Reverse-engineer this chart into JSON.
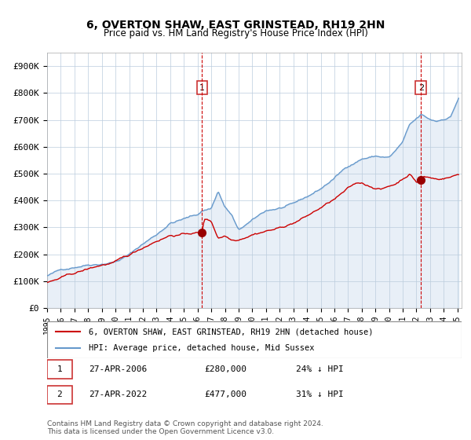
{
  "title": "6, OVERTON SHAW, EAST GRINSTEAD, RH19 2HN",
  "subtitle": "Price paid vs. HM Land Registry's House Price Index (HPI)",
  "ylabel_ticks": [
    "£0",
    "£100K",
    "£200K",
    "£300K",
    "£400K",
    "£500K",
    "£600K",
    "£700K",
    "£800K",
    "£900K"
  ],
  "ytick_values": [
    0,
    100000,
    200000,
    300000,
    400000,
    500000,
    600000,
    700000,
    800000,
    900000
  ],
  "ylim": [
    0,
    950000
  ],
  "legend_line1": "6, OVERTON SHAW, EAST GRINSTEAD, RH19 2HN (detached house)",
  "legend_line2": "HPI: Average price, detached house, Mid Sussex",
  "transaction1_label": "1",
  "transaction1_date": "27-APR-2006",
  "transaction1_price": "£280,000",
  "transaction1_note": "24% ↓ HPI",
  "transaction2_label": "2",
  "transaction2_date": "27-APR-2022",
  "transaction2_price": "£477,000",
  "transaction2_note": "31% ↓ HPI",
  "footer": "Contains HM Land Registry data © Crown copyright and database right 2024.\nThis data is licensed under the Open Government Licence v3.0.",
  "red_color": "#cc0000",
  "blue_color": "#6699cc",
  "bg_color": "#ddeeff",
  "grid_color": "#bbccdd",
  "marker_color": "#990000",
  "dashed_color": "#cc0000",
  "box_color": "#cc3333"
}
